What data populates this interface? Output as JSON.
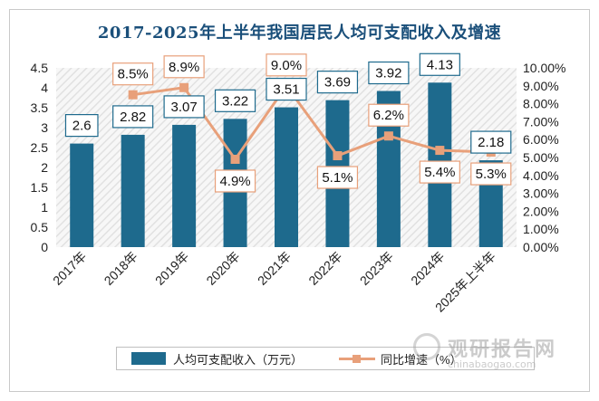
{
  "chart_data": {
    "type": "bar",
    "title": "2017-2025年上半年我国居民人均可支配收入及增速",
    "categories": [
      "2017年",
      "2018年",
      "2019年",
      "2020年",
      "2021年",
      "2022年",
      "2023年",
      "2024年",
      "2025年上半年"
    ],
    "series": [
      {
        "name": "人均可支配收入（万元）",
        "type": "bar",
        "axis": "left",
        "color": "#1e6a8d",
        "values": [
          2.6,
          2.82,
          3.07,
          3.22,
          3.51,
          3.69,
          3.92,
          4.13,
          2.18
        ],
        "labels": [
          "2.6",
          "2.82",
          "3.07",
          "3.22",
          "3.51",
          "3.69",
          "3.92",
          "4.13",
          "2.18"
        ]
      },
      {
        "name": "同比增速（%）",
        "type": "line",
        "axis": "right",
        "color": "#e8a07a",
        "values": [
          null,
          8.5,
          8.9,
          4.9,
          9.0,
          5.1,
          6.2,
          5.4,
          5.3
        ],
        "labels": [
          "",
          "8.5%",
          "8.9%",
          "4.9%",
          "9.0%",
          "5.1%",
          "6.2%",
          "5.4%",
          "5.3%"
        ]
      }
    ],
    "y_left": {
      "min": 0,
      "max": 4.5,
      "ticks": [
        "0",
        "0.5",
        "1",
        "1.5",
        "2",
        "2.5",
        "3",
        "3.5",
        "4",
        "4.5"
      ]
    },
    "y_right": {
      "min": 0,
      "max": 10,
      "ticks": [
        "0.00%",
        "1.00%",
        "2.00%",
        "3.00%",
        "4.00%",
        "5.00%",
        "6.00%",
        "7.00%",
        "8.00%",
        "9.00%",
        "10.00%"
      ]
    },
    "legend": "bottom",
    "grid": false
  },
  "watermark": {
    "name": "观研报告网",
    "url": "chinabaogao.com"
  }
}
